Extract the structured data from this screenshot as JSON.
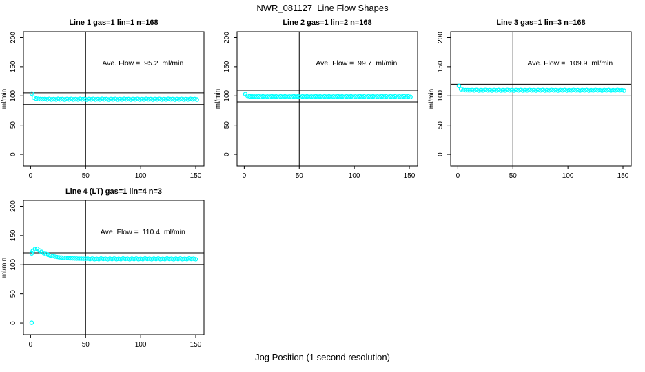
{
  "title": "NWR_081127  Line Flow Shapes",
  "xlabel": "Jog Position (1 second resolution)",
  "point_color": "#00FFFF",
  "axis_color": "#000000",
  "chart_data": [
    {
      "type": "scatter",
      "title": "Line 1 gas=1 lin=1 n=168",
      "ylabel": "ml/min",
      "annotation": "Ave. Flow =  95.2  ml/min",
      "ave_flow_ml_min": 95.2,
      "n": 168,
      "x_ticks": [
        0,
        50,
        100,
        150
      ],
      "y_ticks": [
        0,
        50,
        100,
        150,
        200
      ],
      "xlim": [
        0,
        150
      ],
      "ylim": [
        0,
        200
      ],
      "x_range": [
        -6.5,
        157.5
      ],
      "y_range": [
        -20,
        210
      ],
      "grid": false,
      "legend": false,
      "vline_x": 50,
      "ref_lines": [
        85.2,
        105.2
      ],
      "annotation_pos": {
        "x": 102,
        "y": 152
      },
      "points": [
        [
          1,
          104
        ],
        [
          3,
          97.1
        ],
        [
          5,
          95.4
        ],
        [
          7,
          94.8
        ],
        [
          9,
          94.5
        ],
        [
          11,
          94.4
        ],
        [
          13,
          94.6
        ],
        [
          15,
          94.1
        ],
        [
          17,
          94.7
        ],
        [
          19,
          93.9
        ],
        [
          21,
          94.4
        ],
        [
          23,
          94.0
        ],
        [
          25,
          94.8
        ],
        [
          27,
          94.2
        ],
        [
          29,
          94.5
        ],
        [
          31,
          93.8
        ],
        [
          33,
          94.6
        ],
        [
          35,
          94.1
        ],
        [
          37,
          94.7
        ],
        [
          39,
          93.9
        ],
        [
          41,
          94.4
        ],
        [
          43,
          94.0
        ],
        [
          45,
          94.8
        ],
        [
          47,
          94.2
        ],
        [
          49,
          94.5
        ],
        [
          51,
          93.8
        ],
        [
          53,
          94.6
        ],
        [
          55,
          94.1
        ],
        [
          57,
          94.7
        ],
        [
          59,
          93.9
        ],
        [
          61,
          94.4
        ],
        [
          63,
          94.0
        ],
        [
          65,
          94.8
        ],
        [
          67,
          94.2
        ],
        [
          69,
          94.5
        ],
        [
          71,
          93.8
        ],
        [
          73,
          94.6
        ],
        [
          75,
          94.1
        ],
        [
          77,
          94.7
        ],
        [
          79,
          93.9
        ],
        [
          81,
          94.4
        ],
        [
          83,
          94.0
        ],
        [
          85,
          94.8
        ],
        [
          87,
          94.2
        ],
        [
          89,
          94.5
        ],
        [
          91,
          93.8
        ],
        [
          93,
          94.6
        ],
        [
          95,
          94.1
        ],
        [
          97,
          94.7
        ],
        [
          99,
          93.9
        ],
        [
          101,
          94.4
        ],
        [
          103,
          94.0
        ],
        [
          105,
          94.8
        ],
        [
          107,
          94.2
        ],
        [
          109,
          94.5
        ],
        [
          111,
          93.8
        ],
        [
          113,
          94.6
        ],
        [
          115,
          94.1
        ],
        [
          117,
          94.7
        ],
        [
          119,
          93.9
        ],
        [
          121,
          94.4
        ],
        [
          123,
          94.0
        ],
        [
          125,
          94.8
        ],
        [
          127,
          94.2
        ],
        [
          129,
          94.5
        ],
        [
          131,
          93.8
        ],
        [
          133,
          94.6
        ],
        [
          135,
          94.1
        ],
        [
          137,
          94.7
        ],
        [
          139,
          93.9
        ],
        [
          141,
          94.4
        ],
        [
          143,
          94.0
        ],
        [
          145,
          94.8
        ],
        [
          147,
          94.2
        ],
        [
          149,
          94.5
        ],
        [
          151,
          93.8
        ]
      ]
    },
    {
      "type": "scatter",
      "title": "Line 2 gas=1 lin=2 n=168",
      "ylabel": "ml/min",
      "annotation": "Ave. Flow =  99.7  ml/min",
      "ave_flow_ml_min": 99.7,
      "n": 168,
      "x_ticks": [
        0,
        50,
        100,
        150
      ],
      "y_ticks": [
        0,
        50,
        100,
        150,
        200
      ],
      "xlim": [
        0,
        150
      ],
      "ylim": [
        0,
        200
      ],
      "x_range": [
        -6.5,
        157.5
      ],
      "y_range": [
        -20,
        210
      ],
      "grid": false,
      "legend": false,
      "vline_x": 50,
      "ref_lines": [
        89.7,
        109.7
      ],
      "annotation_pos": {
        "x": 102,
        "y": 152
      },
      "points": [
        [
          1,
          103
        ],
        [
          3,
          100.0
        ],
        [
          5,
          99.2
        ],
        [
          7,
          99.0
        ],
        [
          9,
          98.9
        ],
        [
          11,
          98.8
        ],
        [
          13,
          99.1
        ],
        [
          15,
          98.6
        ],
        [
          17,
          99.2
        ],
        [
          19,
          98.4
        ],
        [
          21,
          98.9
        ],
        [
          23,
          98.5
        ],
        [
          25,
          99.3
        ],
        [
          27,
          98.7
        ],
        [
          29,
          99.0
        ],
        [
          31,
          98.3
        ],
        [
          33,
          99.1
        ],
        [
          35,
          98.6
        ],
        [
          37,
          99.2
        ],
        [
          39,
          98.4
        ],
        [
          41,
          98.9
        ],
        [
          43,
          98.5
        ],
        [
          45,
          99.3
        ],
        [
          47,
          98.7
        ],
        [
          49,
          99.0
        ],
        [
          51,
          98.3
        ],
        [
          53,
          99.1
        ],
        [
          55,
          98.6
        ],
        [
          57,
          99.2
        ],
        [
          59,
          98.4
        ],
        [
          61,
          98.9
        ],
        [
          63,
          98.5
        ],
        [
          65,
          99.3
        ],
        [
          67,
          98.7
        ],
        [
          69,
          99.0
        ],
        [
          71,
          98.3
        ],
        [
          73,
          99.1
        ],
        [
          75,
          98.6
        ],
        [
          77,
          99.2
        ],
        [
          79,
          98.4
        ],
        [
          81,
          98.9
        ],
        [
          83,
          98.5
        ],
        [
          85,
          99.3
        ],
        [
          87,
          98.7
        ],
        [
          89,
          99.0
        ],
        [
          91,
          98.3
        ],
        [
          93,
          99.1
        ],
        [
          95,
          98.6
        ],
        [
          97,
          99.2
        ],
        [
          99,
          98.4
        ],
        [
          101,
          98.9
        ],
        [
          103,
          98.5
        ],
        [
          105,
          99.3
        ],
        [
          107,
          98.7
        ],
        [
          109,
          99.0
        ],
        [
          111,
          98.3
        ],
        [
          113,
          99.1
        ],
        [
          115,
          98.6
        ],
        [
          117,
          99.2
        ],
        [
          119,
          98.4
        ],
        [
          121,
          98.9
        ],
        [
          123,
          98.5
        ],
        [
          125,
          99.3
        ],
        [
          127,
          98.7
        ],
        [
          129,
          99.0
        ],
        [
          131,
          98.3
        ],
        [
          133,
          99.1
        ],
        [
          135,
          98.6
        ],
        [
          137,
          99.2
        ],
        [
          139,
          98.4
        ],
        [
          141,
          98.9
        ],
        [
          143,
          98.5
        ],
        [
          145,
          99.3
        ],
        [
          147,
          98.7
        ],
        [
          149,
          99.0
        ],
        [
          151,
          98.3
        ]
      ]
    },
    {
      "type": "scatter",
      "title": "Line 3 gas=1 lin=3 n=168",
      "ylabel": "ml/min",
      "annotation": "Ave. Flow =  109.9  ml/min",
      "ave_flow_ml_min": 109.9,
      "n": 168,
      "x_ticks": [
        0,
        50,
        100,
        150
      ],
      "y_ticks": [
        0,
        50,
        100,
        150,
        200
      ],
      "xlim": [
        0,
        150
      ],
      "ylim": [
        0,
        200
      ],
      "x_range": [
        -6.5,
        157.5
      ],
      "y_range": [
        -20,
        210
      ],
      "grid": false,
      "legend": false,
      "vline_x": 50,
      "ref_lines": [
        99.9,
        119.9
      ],
      "annotation_pos": {
        "x": 102,
        "y": 152
      },
      "points": [
        [
          1,
          117
        ],
        [
          3,
          111.4
        ],
        [
          5,
          110.1
        ],
        [
          7,
          109.8
        ],
        [
          9,
          109.7
        ],
        [
          11,
          109.6
        ],
        [
          13,
          109.9
        ],
        [
          15,
          109.4
        ],
        [
          17,
          110.0
        ],
        [
          19,
          109.2
        ],
        [
          21,
          109.7
        ],
        [
          23,
          109.3
        ],
        [
          25,
          110.1
        ],
        [
          27,
          109.5
        ],
        [
          29,
          109.8
        ],
        [
          31,
          109.1
        ],
        [
          33,
          109.9
        ],
        [
          35,
          109.4
        ],
        [
          37,
          110.0
        ],
        [
          39,
          109.2
        ],
        [
          41,
          109.7
        ],
        [
          43,
          109.3
        ],
        [
          45,
          110.1
        ],
        [
          47,
          109.5
        ],
        [
          49,
          109.8
        ],
        [
          51,
          109.1
        ],
        [
          53,
          109.9
        ],
        [
          55,
          109.4
        ],
        [
          57,
          110.0
        ],
        [
          59,
          109.2
        ],
        [
          61,
          109.7
        ],
        [
          63,
          109.3
        ],
        [
          65,
          110.1
        ],
        [
          67,
          109.5
        ],
        [
          69,
          109.8
        ],
        [
          71,
          109.1
        ],
        [
          73,
          109.9
        ],
        [
          75,
          109.4
        ],
        [
          77,
          110.0
        ],
        [
          79,
          109.2
        ],
        [
          81,
          109.7
        ],
        [
          83,
          109.3
        ],
        [
          85,
          110.1
        ],
        [
          87,
          109.5
        ],
        [
          89,
          109.8
        ],
        [
          91,
          109.1
        ],
        [
          93,
          109.9
        ],
        [
          95,
          109.4
        ],
        [
          97,
          110.0
        ],
        [
          99,
          109.2
        ],
        [
          101,
          109.7
        ],
        [
          103,
          109.3
        ],
        [
          105,
          110.1
        ],
        [
          107,
          109.5
        ],
        [
          109,
          109.8
        ],
        [
          111,
          109.1
        ],
        [
          113,
          109.9
        ],
        [
          115,
          109.4
        ],
        [
          117,
          110.0
        ],
        [
          119,
          109.2
        ],
        [
          121,
          109.7
        ],
        [
          123,
          109.3
        ],
        [
          125,
          110.1
        ],
        [
          127,
          109.5
        ],
        [
          129,
          109.8
        ],
        [
          131,
          109.1
        ],
        [
          133,
          109.9
        ],
        [
          135,
          109.4
        ],
        [
          137,
          110.0
        ],
        [
          139,
          109.2
        ],
        [
          141,
          109.7
        ],
        [
          143,
          109.3
        ],
        [
          145,
          110.1
        ],
        [
          147,
          109.5
        ],
        [
          149,
          109.8
        ],
        [
          151,
          109.1
        ]
      ]
    },
    {
      "type": "scatter",
      "title": "Line 4 (LT) gas=1 lin=4 n=3",
      "ylabel": "ml/min",
      "annotation": "Ave. Flow =  110.4  ml/min",
      "ave_flow_ml_min": 110.4,
      "n": 3,
      "x_ticks": [
        0,
        50,
        100,
        150
      ],
      "y_ticks": [
        0,
        50,
        100,
        150,
        200
      ],
      "xlim": [
        0,
        150
      ],
      "ylim": [
        0,
        200
      ],
      "x_range": [
        -6.5,
        157.5
      ],
      "y_range": [
        -20,
        210
      ],
      "grid": false,
      "legend": false,
      "vline_x": 50,
      "ref_lines": [
        100.4,
        120.4
      ],
      "annotation_pos": {
        "x": 102,
        "y": 152
      },
      "points": [
        [
          1,
          0.5
        ],
        [
          1,
          119.5
        ],
        [
          2,
          123.5
        ],
        [
          4,
          126.8
        ],
        [
          6,
          127.3
        ],
        [
          8,
          124.4
        ],
        [
          10,
          122.0
        ],
        [
          12,
          119.9
        ],
        [
          14,
          118.3
        ],
        [
          16,
          116.9
        ],
        [
          18,
          115.7
        ],
        [
          20,
          114.7
        ],
        [
          22,
          113.9
        ],
        [
          24,
          113.2
        ],
        [
          26,
          112.6
        ],
        [
          28,
          112.2
        ],
        [
          30,
          111.8
        ],
        [
          32,
          111.4
        ],
        [
          34,
          111.2
        ],
        [
          36,
          110.9
        ],
        [
          38,
          110.8
        ],
        [
          40,
          110.6
        ],
        [
          42,
          110.5
        ],
        [
          44,
          110.4
        ],
        [
          46,
          110.3
        ],
        [
          48,
          110.2
        ],
        [
          50,
          110.2
        ],
        [
          52,
          110.3
        ],
        [
          54,
          109.6
        ],
        [
          56,
          110.5
        ],
        [
          58,
          109.4
        ],
        [
          60,
          110.1
        ],
        [
          62,
          109.5
        ],
        [
          64,
          110.6
        ],
        [
          66,
          109.8
        ],
        [
          68,
          110.2
        ],
        [
          70,
          109.3
        ],
        [
          72,
          110.3
        ],
        [
          74,
          109.6
        ],
        [
          76,
          110.5
        ],
        [
          78,
          109.4
        ],
        [
          80,
          110.1
        ],
        [
          82,
          109.5
        ],
        [
          84,
          110.6
        ],
        [
          86,
          109.8
        ],
        [
          88,
          110.2
        ],
        [
          90,
          109.3
        ],
        [
          92,
          110.3
        ],
        [
          94,
          109.6
        ],
        [
          96,
          110.5
        ],
        [
          98,
          109.4
        ],
        [
          100,
          110.1
        ],
        [
          102,
          109.5
        ],
        [
          104,
          110.6
        ],
        [
          106,
          109.8
        ],
        [
          108,
          110.2
        ],
        [
          110,
          109.3
        ],
        [
          112,
          110.3
        ],
        [
          114,
          109.6
        ],
        [
          116,
          110.5
        ],
        [
          118,
          109.4
        ],
        [
          120,
          110.1
        ],
        [
          122,
          109.5
        ],
        [
          124,
          110.6
        ],
        [
          126,
          109.8
        ],
        [
          128,
          110.2
        ],
        [
          130,
          109.3
        ],
        [
          132,
          110.3
        ],
        [
          134,
          109.6
        ],
        [
          136,
          110.5
        ],
        [
          138,
          109.4
        ],
        [
          140,
          110.1
        ],
        [
          142,
          109.5
        ],
        [
          144,
          110.6
        ],
        [
          146,
          109.8
        ],
        [
          148,
          110.2
        ],
        [
          150,
          109.3
        ]
      ]
    }
  ]
}
